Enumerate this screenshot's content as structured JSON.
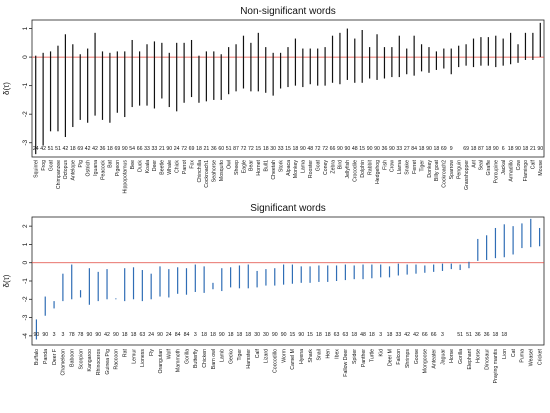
{
  "chart_data": [
    {
      "type": "errorbar",
      "title": "Non-significant words",
      "ylabel": "δ(τ)",
      "ylim": [
        -3.5,
        1.3
      ],
      "yticks": [
        -3,
        -2,
        -1,
        0,
        1
      ],
      "reference_line": 0,
      "reference_color": "#e0443a",
      "bar_color": "#111111",
      "categories": [
        "Squirrel",
        "Frog",
        "Goat",
        "Chimpanzee",
        "Octopus",
        "Antelope",
        "Pig",
        "Ostrich",
        "Iguana",
        "Peacock",
        "Bat",
        "Pigeon",
        "Hippopotamus",
        "Bee",
        "Duck",
        "Koala",
        "Deer",
        "Beetle",
        "Whale",
        "Chick",
        "Parrot",
        "Fox",
        "Chinchilla",
        "Cockroach1",
        "Seahorse",
        "Mosquito",
        "Owl",
        "Sheep",
        "Eagle",
        "Bear",
        "Hornet",
        "Bull1",
        "Cheetah",
        "Stork",
        "Alpaca",
        "Monkey",
        "Lama",
        "Rooster",
        "Goat",
        "Coney",
        "Zebra",
        "Bird",
        "Jellyfish",
        "Crocodile",
        "Dolphin",
        "Rabbit",
        "Hedgehog",
        "Fish",
        "Crow",
        "Llama",
        "Snake",
        "Ferret",
        "Tiger",
        "Donkey",
        "Billy goat",
        "Cockroach2",
        "Sparrow",
        "Penguin",
        "Grasshopper",
        "Ant",
        "Seal",
        "Giraffe",
        "Porcupine",
        "Jackal",
        "Armadillo",
        "Cow",
        "Flamingo",
        "Calf",
        "Mouse"
      ],
      "n": [
        "24",
        "42",
        "51",
        "51",
        "42",
        "18",
        "69",
        "42",
        "42",
        "36",
        "18",
        "69",
        "90",
        "54",
        "66",
        "33",
        "33",
        "21",
        "90",
        "24",
        "72",
        "69",
        "18",
        "21",
        "36",
        "60",
        "51",
        "87",
        "72",
        "72",
        "15",
        "18",
        "30",
        "33",
        "15",
        "18",
        "90",
        "48",
        "72",
        "72",
        "66",
        "90",
        "90",
        "48",
        "15",
        "90",
        "90",
        "36",
        "90",
        "33",
        "27",
        "84",
        "18",
        "90",
        "18",
        "69",
        "9",
        "",
        "69",
        "18",
        "87",
        "18",
        "90",
        "6",
        "18",
        "90",
        "18",
        "21",
        "90"
      ],
      "low": [
        -3.4,
        -3.1,
        -2.6,
        -2.6,
        -2.8,
        -2.45,
        -2.2,
        -2.3,
        -2.05,
        -2.2,
        -2.3,
        -1.95,
        -2.1,
        -1.75,
        -1.7,
        -1.7,
        -1.8,
        -1.45,
        -1.75,
        -1.9,
        -1.6,
        -1.4,
        -1.6,
        -1.55,
        -1.5,
        -1.5,
        -1.3,
        -1.2,
        -1.1,
        -1.2,
        -1.2,
        -1.25,
        -1.35,
        -1.1,
        -1.05,
        -1.0,
        -1.05,
        -0.95,
        -1.0,
        -1.0,
        -0.9,
        -0.95,
        -0.8,
        -0.9,
        -0.9,
        -0.75,
        -0.8,
        -0.75,
        -0.7,
        -0.7,
        -0.6,
        -0.65,
        -0.5,
        -0.55,
        -0.45,
        -0.4,
        -0.6,
        -0.35,
        -0.3,
        -0.35,
        -0.3,
        -0.3,
        -0.35,
        -0.3,
        -0.25,
        -0.2,
        -0.1,
        -0.1,
        0.0
      ],
      "high": [
        0.05,
        0.15,
        0.2,
        0.4,
        0.8,
        0.45,
        0.1,
        0.3,
        0.85,
        0.2,
        0.15,
        0.2,
        0.2,
        0.6,
        0.2,
        0.45,
        0.55,
        0.5,
        0.15,
        0.5,
        0.5,
        0.6,
        0.05,
        0.2,
        0.2,
        0.1,
        0.35,
        0.45,
        0.75,
        0.5,
        0.85,
        0.35,
        0.15,
        0.15,
        0.35,
        0.65,
        0.3,
        0.3,
        0.3,
        0.35,
        0.75,
        0.85,
        1.0,
        0.65,
        0.95,
        0.35,
        0.8,
        0.35,
        0.35,
        0.75,
        0.3,
        0.75,
        0.45,
        0.35,
        0.2,
        0.3,
        0.3,
        0.4,
        0.45,
        0.65,
        0.7,
        0.7,
        0.75,
        0.65,
        0.85,
        0.45,
        0.85,
        0.85,
        1.2
      ]
    },
    {
      "type": "errorbar",
      "title": "Significant words",
      "ylabel": "δ(τ)",
      "ylim": [
        -4.5,
        2.5
      ],
      "yticks": [
        -4,
        -3,
        -2,
        -1,
        0,
        1,
        2
      ],
      "reference_line": 0,
      "reference_color": "#e0443a",
      "bar_color": "#2f6db5",
      "categories": [
        "Buffalo",
        "Panda",
        "Deer F",
        "Chameleon",
        "Baboon",
        "Scorpion",
        "Kangaroo",
        "Rhinoceros",
        "Guinea Pig",
        "Raccoon",
        "Rat",
        "Lemur",
        "Lioness",
        "Fly",
        "Orangutan",
        "Wolf",
        "Mammoth",
        "Gorilla",
        "Butterfly",
        "Chicken",
        "Barn owl",
        "Lamb",
        "Gecko",
        "Tiger",
        "Hamster",
        "Calf",
        "Lizard",
        "Coccodillo",
        "Worm",
        "Camel M",
        "Hyena",
        "Shark",
        "Snail",
        "Hen",
        "Ibex",
        "Fallow Deer",
        "Spider",
        "Panther",
        "Turtle",
        "Kid",
        "Deer M",
        "Falcon",
        "Shrimps",
        "Goose",
        "Mongoose",
        "Anteater",
        "Jaguar",
        "Horse",
        "Gorilla",
        "Elephant",
        "Horse",
        "Dinosaur",
        "Praying mantis",
        "Lion",
        "Cat",
        "Puma",
        "Weasel",
        "Cricket"
      ],
      "n": [
        "90",
        "90",
        "3",
        "3",
        "78",
        "78",
        "90",
        "90",
        "42",
        "90",
        "18",
        "18",
        "63",
        "24",
        "90",
        "24",
        "84",
        "84",
        "3",
        "18",
        "18",
        "90",
        "18",
        "18",
        "18",
        "30",
        "30",
        "90",
        "90",
        "15",
        "90",
        "15",
        "18",
        "18",
        "63",
        "63",
        "18",
        "48",
        "18",
        "3",
        "18",
        "33",
        "42",
        "42",
        "66",
        "66",
        "3",
        "",
        "51",
        "51",
        "36",
        "36",
        "18",
        "18"
      ],
      "low": [
        -4.2,
        -2.9,
        -2.5,
        -2.1,
        -2.0,
        -1.9,
        -2.3,
        -2.1,
        -2.0,
        -2.0,
        -2.1,
        -2.0,
        -2.1,
        -2.0,
        -1.85,
        -1.9,
        -1.7,
        -1.75,
        -1.6,
        -1.65,
        -1.45,
        -1.55,
        -1.35,
        -1.4,
        -1.4,
        -1.35,
        -1.25,
        -1.25,
        -1.2,
        -1.15,
        -1.1,
        -1.1,
        -1.05,
        -1.05,
        -1.0,
        -0.95,
        -0.9,
        -0.9,
        -0.85,
        -0.8,
        -0.8,
        -0.7,
        -0.65,
        -0.6,
        -0.55,
        -0.5,
        -0.45,
        -0.35,
        -0.4,
        -0.3,
        0.1,
        0.15,
        0.25,
        0.3,
        0.45,
        0.8,
        0.85,
        0.9
      ],
      "high": [
        -3.1,
        -1.85,
        -2.1,
        -0.6,
        -0.1,
        -1.5,
        -0.3,
        -0.5,
        -0.35,
        -1.95,
        -0.3,
        -0.25,
        -0.4,
        -0.6,
        -0.2,
        -0.35,
        -0.25,
        -0.3,
        -0.1,
        -0.2,
        -1.1,
        -0.3,
        -0.25,
        -0.15,
        -0.1,
        -0.45,
        -0.35,
        -0.3,
        -0.1,
        -0.1,
        -0.2,
        -0.2,
        -0.15,
        -0.15,
        -0.15,
        -0.1,
        -0.15,
        -0.1,
        -0.1,
        -0.1,
        -0.2,
        -0.05,
        -0.1,
        -0.1,
        -0.15,
        -0.1,
        -0.05,
        -0.05,
        -0.1,
        0.05,
        1.3,
        1.5,
        1.9,
        2.1,
        2.0,
        2.15,
        2.4,
        1.9
      ]
    }
  ]
}
